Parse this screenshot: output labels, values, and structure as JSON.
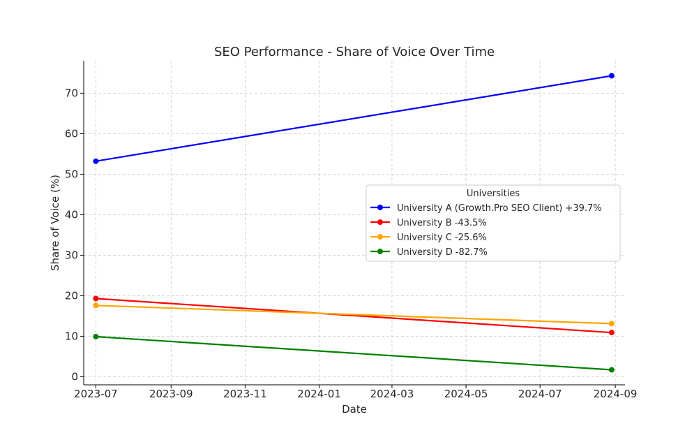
{
  "chart_data": {
    "type": "line",
    "title": "SEO Performance - Share of Voice Over Time",
    "xlabel": "Date",
    "ylabel": "Share of Voice (%)",
    "x": [
      "2023-07-01",
      "2024-08-29"
    ],
    "xlim": [
      "2023-06-21",
      "2024-09-09"
    ],
    "ylim": [
      -2,
      78
    ],
    "x_ticks": [
      "2023-07-01",
      "2023-09-01",
      "2023-11-01",
      "2024-01-01",
      "2024-03-01",
      "2024-05-01",
      "2024-07-01",
      "2024-09-01"
    ],
    "x_tick_labels": [
      "2023-07",
      "2023-09",
      "2023-11",
      "2024-01",
      "2024-03",
      "2024-05",
      "2024-07",
      "2024-09"
    ],
    "y_ticks": [
      0,
      10,
      20,
      30,
      40,
      50,
      60,
      70
    ],
    "grid": true,
    "legend": {
      "title": "Universities",
      "placement": "center-right"
    },
    "series": [
      {
        "name": "University A (Growth.Pro SEO Client) +39.7%",
        "color": "#0000ff",
        "values": [
          53.2,
          74.3
        ]
      },
      {
        "name": "University B -43.5%",
        "color": "#ff0000",
        "values": [
          19.3,
          10.9
        ]
      },
      {
        "name": "University C -25.6%",
        "color": "#ffa500",
        "values": [
          17.6,
          13.1
        ]
      },
      {
        "name": "University D -82.7%",
        "color": "#008000",
        "values": [
          9.9,
          1.7
        ]
      }
    ]
  }
}
